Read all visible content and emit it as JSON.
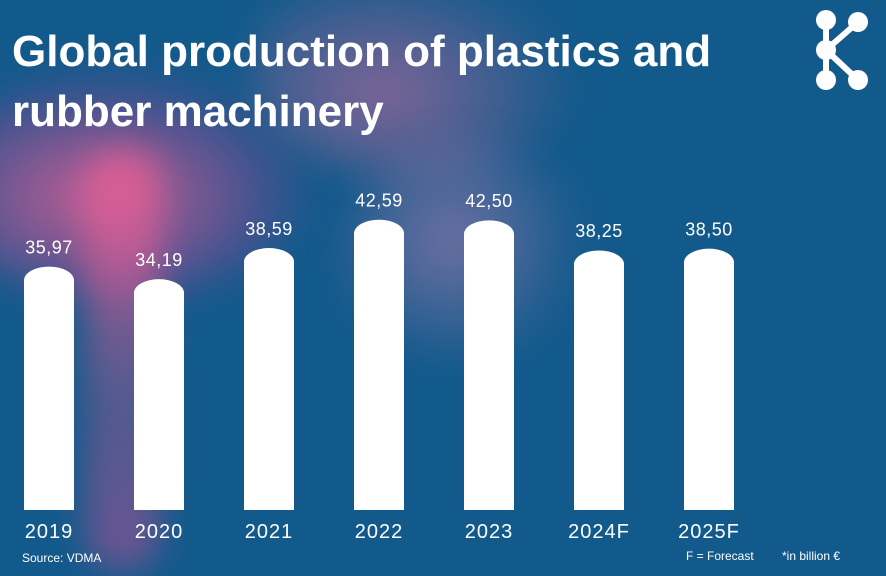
{
  "title": "Global production of plastics and rubber machinery",
  "footer": {
    "source": "Source: VDMA",
    "forecast_note": "F = Forecast",
    "unit_note": "*in billion €"
  },
  "logo_icon": "share-network-icon",
  "colors": {
    "background": "#135a8c",
    "bar": "#ffffff",
    "text": "#ffffff"
  },
  "chart_data": {
    "type": "bar",
    "title": "Global production of plastics and rubber machinery",
    "categories": [
      "2019",
      "2020",
      "2021",
      "2022",
      "2023",
      "2024F",
      "2025F"
    ],
    "values": [
      35.97,
      34.19,
      38.59,
      42.59,
      42.5,
      38.25,
      38.5
    ],
    "value_labels": [
      "35,97",
      "34,19",
      "38,59",
      "42,59",
      "42,50",
      "38,25",
      "38,50"
    ],
    "xlabel": "",
    "ylabel": "",
    "grid": false,
    "legend": "none"
  }
}
